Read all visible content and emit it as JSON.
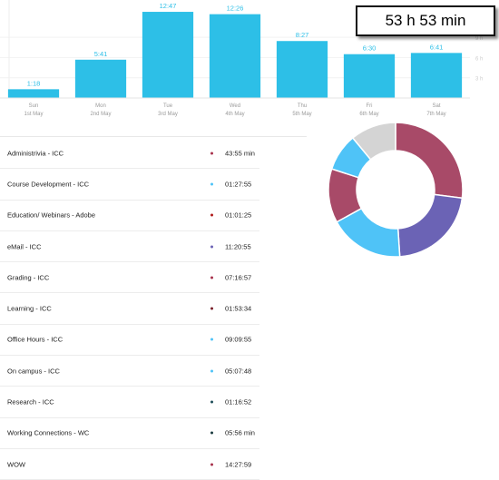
{
  "total": "53 h 53 min",
  "chart_data": {
    "type": "bar",
    "categories": [
      "Sun",
      "Mon",
      "Tue",
      "Wed",
      "Thu",
      "Fri",
      "Sat"
    ],
    "dates": [
      "1st May",
      "2nd May",
      "3rd May",
      "4th May",
      "5th May",
      "6th May",
      "7th May"
    ],
    "value_labels": [
      "1:18",
      "5:41",
      "12:47",
      "12:26",
      "8:27",
      "6:30",
      "6:41"
    ],
    "values": [
      1.3,
      5.683,
      12.783,
      12.433,
      8.45,
      6.5,
      6.683
    ],
    "ylim": [
      0,
      14
    ],
    "right_ticks": [
      "9 h",
      "6 h",
      "3 h"
    ],
    "bar_color": "#2dbfe7"
  },
  "activities": [
    {
      "name": "Administrivia - ICC",
      "time": "43:55 min",
      "color": "#a8324c"
    },
    {
      "name": "Course Development - ICC",
      "time": "01:27:55",
      "color": "#4fc3f7"
    },
    {
      "name": "Education/ Webinars - Adobe",
      "time": "01:01:25",
      "color": "#b01c1c"
    },
    {
      "name": "eMail - ICC",
      "time": "11:20:55",
      "color": "#6b63b5"
    },
    {
      "name": "Grading - ICC",
      "time": "07:16:57",
      "color": "#a8324c"
    },
    {
      "name": "Learning - ICC",
      "time": "01:53:34",
      "color": "#7a1f2a"
    },
    {
      "name": "Office Hours - ICC",
      "time": "09:09:55",
      "color": "#4fc3f7"
    },
    {
      "name": "On campus - ICC",
      "time": "05:07:48",
      "color": "#4fc3f7"
    },
    {
      "name": "Research - ICC",
      "time": "01:16:52",
      "color": "#1f4e5a"
    },
    {
      "name": "Working Connections - WC",
      "time": "05:56 min",
      "color": "#1a3a40"
    },
    {
      "name": "WOW",
      "time": "14:27:59",
      "color": "#a8324c"
    }
  ],
  "donut": {
    "type": "pie",
    "slices": [
      {
        "value": 27,
        "color": "#a84a68"
      },
      {
        "value": 22,
        "color": "#6b63b5"
      },
      {
        "value": 18,
        "color": "#4fc3f7"
      },
      {
        "value": 13,
        "color": "#a84a68"
      },
      {
        "value": 9,
        "color": "#4fc3f7"
      },
      {
        "value": 11,
        "color": "#d4d4d4"
      }
    ]
  }
}
